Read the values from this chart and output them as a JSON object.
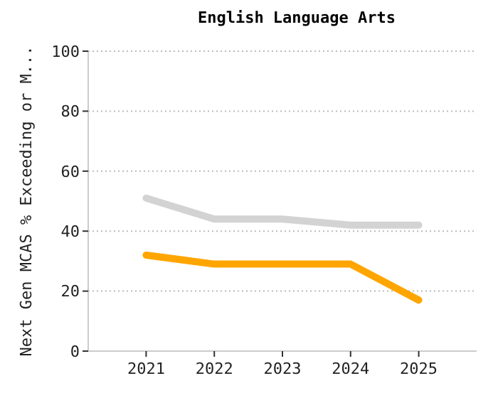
{
  "chart_data": {
    "type": "line",
    "title": "English Language Arts",
    "ylabel": "Next Gen MCAS % Exceeding or M...",
    "categories": [
      "2021",
      "2022",
      "2023",
      "2024",
      "2025"
    ],
    "series": [
      {
        "color": "#d3d3d3",
        "values": [
          51,
          44,
          44,
          42,
          42
        ]
      },
      {
        "color": "#ffa500",
        "values": [
          32,
          29,
          29,
          29,
          17
        ]
      }
    ],
    "ylim": [
      0,
      100
    ],
    "yticks": [
      0,
      20,
      40,
      60,
      80,
      100
    ],
    "grid": "y",
    "marker": "none",
    "line_style": "solid"
  }
}
